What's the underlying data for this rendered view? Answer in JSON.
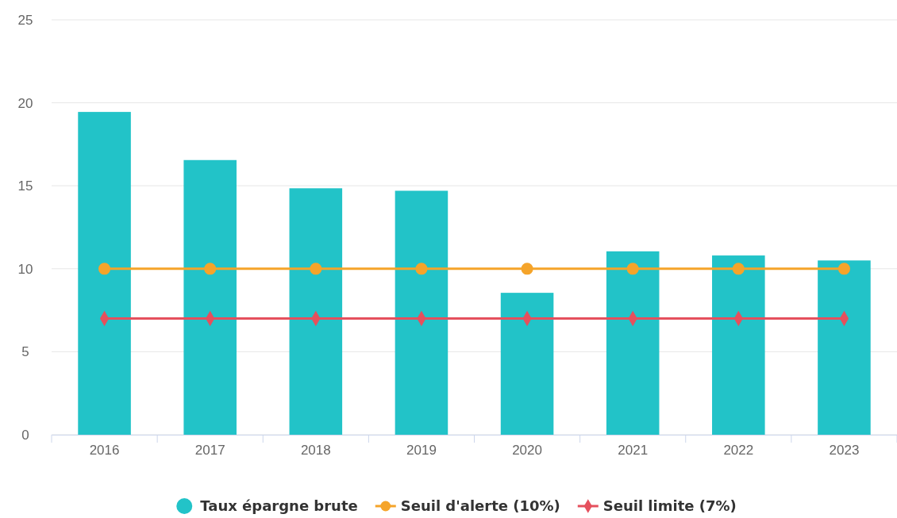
{
  "chart_data": {
    "type": "bar",
    "categories": [
      "2016",
      "2017",
      "2018",
      "2019",
      "2020",
      "2021",
      "2022",
      "2023"
    ],
    "series": [
      {
        "name": "Taux épargne brute",
        "color": "#22c3c8",
        "values": [
          19.45,
          16.55,
          14.85,
          14.7,
          8.55,
          11.05,
          10.8,
          10.5
        ]
      },
      {
        "name": "Seuil d'alerte (10%)",
        "type": "line",
        "color": "#f5a42a",
        "marker": "circle",
        "values": [
          10,
          10,
          10,
          10,
          10,
          10,
          10,
          10
        ]
      },
      {
        "name": "Seuil limite (7%)",
        "type": "line",
        "color": "#e5505d",
        "marker": "diamond",
        "values": [
          7,
          7,
          7,
          7,
          7,
          7,
          7,
          7
        ]
      }
    ],
    "ylim": [
      0,
      25
    ],
    "yticks": [
      0,
      5,
      10,
      15,
      20,
      25
    ],
    "grid": "y",
    "legend": "bottom"
  }
}
